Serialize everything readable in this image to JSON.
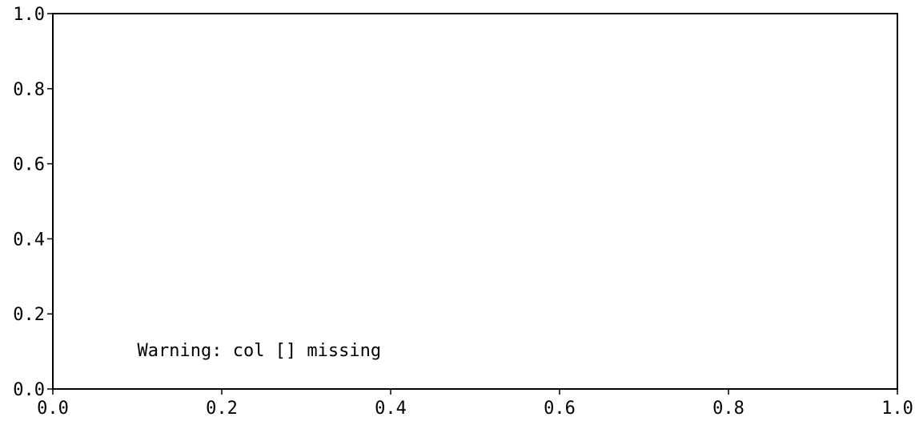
{
  "chart_data": {
    "type": "line",
    "title": "",
    "xlabel": "",
    "ylabel": "",
    "xlim": [
      0.0,
      1.0
    ],
    "ylim": [
      0.0,
      1.0
    ],
    "x_ticks": [
      0.0,
      0.2,
      0.4,
      0.6,
      0.8,
      1.0
    ],
    "y_ticks": [
      0.0,
      0.2,
      0.4,
      0.6,
      0.8,
      1.0
    ],
    "x_tick_labels": [
      "0.0",
      "0.2",
      "0.4",
      "0.6",
      "0.8",
      "1.0"
    ],
    "y_tick_labels": [
      "0.0",
      "0.2",
      "0.4",
      "0.6",
      "0.8",
      "1.0"
    ],
    "series": [],
    "grid": false,
    "annotations": [
      {
        "text": "Warning: col [] missing",
        "x": 0.1,
        "y": 0.1
      }
    ]
  }
}
